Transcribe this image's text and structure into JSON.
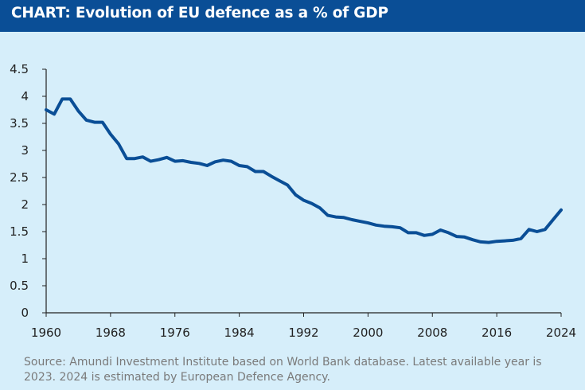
{
  "header": {
    "title": "CHART: Evolution of EU defence as a % of GDP"
  },
  "source": "Source: Amundi Investment Institute based on World Bank database. Latest available year is 2023. 2024 is estimated by European Defence Agency.",
  "colors": {
    "header_bg": "#0a4e96",
    "background": "#d6eefa",
    "line": "#0a4e96",
    "source_text": "#7a7a7a"
  },
  "chart_data": {
    "type": "line",
    "xlim": [
      1960,
      2024
    ],
    "ylim": [
      0,
      4.5
    ],
    "xticks": [
      "1960",
      "1968",
      "1976",
      "1984",
      "1992",
      "2000",
      "2008",
      "2016",
      "2024"
    ],
    "yticks": [
      "0",
      "0.5",
      "1",
      "1.5",
      "2",
      "2.5",
      "3",
      "3.5",
      "4",
      "4.5"
    ],
    "grid": false,
    "legend": "none",
    "series": [
      {
        "x": [
          1960,
          1961,
          1962,
          1963,
          1964,
          1965,
          1966,
          1967,
          1968,
          1969,
          1970,
          1971,
          1972,
          1973,
          1974,
          1975,
          1976,
          1977,
          1978,
          1979,
          1980,
          1981,
          1982,
          1983,
          1984,
          1985,
          1986,
          1987,
          1988,
          1989,
          1990,
          1991,
          1992,
          1993,
          1994,
          1995,
          1996,
          1997,
          1998,
          1999,
          2000,
          2001,
          2002,
          2003,
          2004,
          2005,
          2006,
          2007,
          2008,
          2009,
          2010,
          2011,
          2012,
          2013,
          2014,
          2015,
          2016,
          2017,
          2018,
          2019,
          2020,
          2021,
          2022,
          2023,
          2024
        ],
        "y": [
          3.75,
          3.67,
          3.95,
          3.95,
          3.73,
          3.56,
          3.52,
          3.52,
          3.3,
          3.12,
          2.85,
          2.85,
          2.88,
          2.8,
          2.83,
          2.87,
          2.8,
          2.81,
          2.78,
          2.76,
          2.72,
          2.79,
          2.82,
          2.8,
          2.72,
          2.7,
          2.61,
          2.61,
          2.52,
          2.44,
          2.36,
          2.18,
          2.08,
          2.02,
          1.94,
          1.8,
          1.77,
          1.76,
          1.72,
          1.69,
          1.66,
          1.62,
          1.6,
          1.59,
          1.57,
          1.48,
          1.48,
          1.43,
          1.45,
          1.53,
          1.48,
          1.41,
          1.4,
          1.35,
          1.31,
          1.3,
          1.32,
          1.33,
          1.34,
          1.37,
          1.54,
          1.5,
          1.54,
          1.72,
          1.9
        ]
      }
    ]
  }
}
